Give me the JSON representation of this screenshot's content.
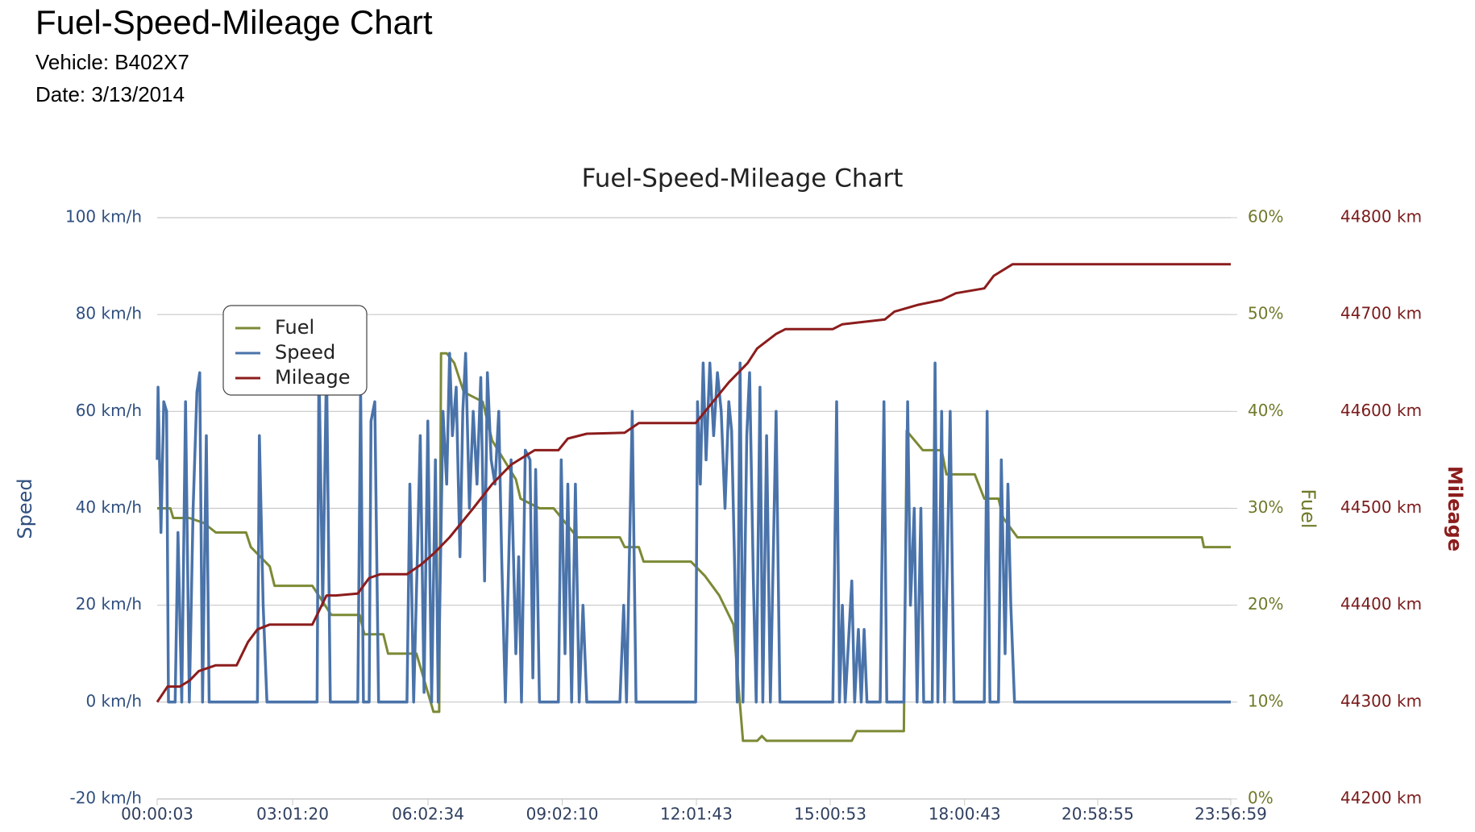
{
  "header": {
    "title": "Fuel-Speed-Mileage Chart",
    "vehicle": "Vehicle: B402X7",
    "date": "Date: 3/13/2014"
  },
  "chart_data": {
    "type": "line",
    "title": "Fuel-Speed-Mileage Chart",
    "y_label": "Speed",
    "y2_label": "Fuel",
    "y3_label": "Mileage",
    "legend": "upper left",
    "grid": true,
    "xlim": [
      3,
      86219
    ],
    "xticks": [
      {
        "value": 3,
        "label": "00:00:03"
      },
      {
        "value": 10880,
        "label": "03:01:20"
      },
      {
        "value": 21754,
        "label": "06:02:34"
      },
      {
        "value": 32530,
        "label": "09:02:10"
      },
      {
        "value": 43303,
        "label": "12:01:43"
      },
      {
        "value": 54053,
        "label": "15:00:53"
      },
      {
        "value": 64843,
        "label": "18:00:43"
      },
      {
        "value": 75535,
        "label": "20:58:55"
      },
      {
        "value": 86219,
        "label": "23:56:59"
      }
    ],
    "ylim": [
      -20,
      100
    ],
    "yticks": [
      {
        "value": -20,
        "label": "-20 km/h"
      },
      {
        "value": 0,
        "label": "0 km/h"
      },
      {
        "value": 20,
        "label": "20 km/h"
      },
      {
        "value": 40,
        "label": "40 km/h"
      },
      {
        "value": 60,
        "label": "60 km/h"
      },
      {
        "value": 80,
        "label": "80 km/h"
      },
      {
        "value": 100,
        "label": "100 km/h"
      }
    ],
    "y2lim": [
      0,
      60
    ],
    "y2ticks": [
      {
        "value": 0,
        "label": "0%"
      },
      {
        "value": 10,
        "label": "10%"
      },
      {
        "value": 20,
        "label": "20%"
      },
      {
        "value": 30,
        "label": "30%"
      },
      {
        "value": 40,
        "label": "40%"
      },
      {
        "value": 50,
        "label": "50%"
      },
      {
        "value": 60,
        "label": "60%"
      }
    ],
    "y3lim": [
      44200,
      44800
    ],
    "y3ticks": [
      {
        "value": 44200,
        "label": "44200 km"
      },
      {
        "value": 44300,
        "label": "44300 km"
      },
      {
        "value": 44400,
        "label": "44400 km"
      },
      {
        "value": 44500,
        "label": "44500 km"
      },
      {
        "value": 44600,
        "label": "44600 km"
      },
      {
        "value": 44700,
        "label": "44700 km"
      },
      {
        "value": 44800,
        "label": "44800 km"
      }
    ],
    "series": [
      {
        "name": "Fuel",
        "color": "#7b8a35",
        "axis": "y2",
        "x": [
          3,
          1064,
          1292,
          2584,
          3724,
          4712,
          7144,
          7524,
          9044,
          9424,
          12464,
          13984,
          16264,
          16644,
          18164,
          18544,
          20824,
          21964,
          22192,
          22648,
          22800,
          23256,
          23864,
          24624,
          26144,
          26904,
          28804,
          29184,
          30704,
          31844,
          33744,
          37164,
          37544,
          38684,
          39064,
          42864,
          44004,
          45144,
          46284,
          47044,
          48184,
          48564,
          48944,
          55784,
          56164,
          59964,
          60192,
          61484,
          63004,
          63384,
          65664,
          66424,
          67564,
          67944,
          69084,
          83904,
          84056,
          86219
        ],
        "values": [
          30,
          30,
          29,
          29,
          28.5,
          27.5,
          27.5,
          26,
          24,
          22,
          22,
          19,
          19,
          17,
          17,
          15,
          15,
          10,
          9,
          9,
          46,
          46,
          45,
          42,
          41,
          37,
          33,
          31,
          30,
          30,
          27,
          27,
          26,
          26,
          24.5,
          24.5,
          23,
          21,
          18,
          6,
          6,
          6.5,
          6,
          6,
          7,
          7,
          38,
          36,
          36,
          33.5,
          33.5,
          31,
          31,
          29,
          27,
          27,
          26,
          26
        ]
      },
      {
        "name": "Speed",
        "color": "#4a73aa",
        "axis": "y",
        "x": [
          3,
          76,
          304,
          532,
          760,
          912,
          1444,
          1672,
          1976,
          2280,
          2584,
          2888,
          3192,
          3420,
          3648,
          3952,
          4180,
          4712,
          8056,
          8208,
          8512,
          8816,
          12844,
          12996,
          13300,
          13604,
          13908,
          16112,
          16340,
          16568,
          17024,
          17176,
          17480,
          17784,
          20064,
          20292,
          20596,
          20900,
          21128,
          21432,
          21736,
          22040,
          22344,
          22572,
          22952,
          23256,
          23484,
          23712,
          24016,
          24320,
          24548,
          24776,
          25080,
          25384,
          25688,
          25992,
          26296,
          26524,
          26828,
          27132,
          27436,
          27664,
          27968,
          28424,
          28804,
          29032,
          29260,
          29564,
          29944,
          30172,
          30400,
          30704,
          32224,
          32452,
          32756,
          32984,
          33288,
          33592,
          33896,
          34200,
          34504,
          37164,
          37468,
          37696,
          38152,
          38456,
          43244,
          43396,
          43624,
          43852,
          44080,
          44384,
          44688,
          44992,
          45296,
          45600,
          45904,
          46132,
          46360,
          46588,
          46816,
          47044,
          47348,
          47576,
          47880,
          48108,
          48412,
          48640,
          48944,
          49248,
          49704,
          50008,
          54264,
          54568,
          54796,
          55024,
          55252,
          55784,
          56012,
          56316,
          56544,
          56772,
          57000,
          58064,
          58368,
          58596,
          59964,
          60268,
          60496,
          60800,
          61028,
          61332,
          61560,
          62244,
          62472,
          62700,
          63004,
          63232,
          63688,
          63992,
          66424,
          66652,
          66880,
          67564,
          67792,
          68096,
          68324,
          68552,
          68856,
          86219
        ],
        "values": [
          50,
          65,
          35,
          62,
          60,
          0,
          0,
          35,
          0,
          62,
          0,
          40,
          64,
          68,
          0,
          55,
          0,
          0,
          0,
          55,
          20,
          0,
          0,
          70,
          20,
          70,
          0,
          0,
          65,
          0,
          0,
          58,
          62,
          0,
          0,
          45,
          0,
          30,
          55,
          2,
          58,
          0,
          50,
          0,
          60,
          45,
          72,
          55,
          65,
          30,
          60,
          72,
          40,
          60,
          45,
          67,
          25,
          68,
          50,
          45,
          60,
          30,
          0,
          50,
          10,
          30,
          0,
          52,
          50,
          5,
          48,
          0,
          0,
          50,
          10,
          45,
          0,
          45,
          0,
          20,
          0,
          0,
          20,
          0,
          60,
          0,
          0,
          62,
          45,
          70,
          50,
          70,
          55,
          68,
          60,
          40,
          62,
          56,
          30,
          0,
          70,
          0,
          55,
          68,
          25,
          0,
          65,
          0,
          55,
          0,
          60,
          0,
          0,
          62,
          0,
          20,
          0,
          25,
          0,
          15,
          0,
          15,
          0,
          0,
          62,
          0,
          0,
          62,
          20,
          40,
          0,
          40,
          0,
          0,
          70,
          0,
          60,
          0,
          60,
          0,
          0,
          60,
          0,
          0,
          50,
          10,
          45,
          20,
          0,
          0
        ]
      },
      {
        "name": "Mileage",
        "color": "#8c1c1c",
        "axis": "y3",
        "x": [
          3,
          836,
          1824,
          2584,
          3344,
          4712,
          6384,
          7296,
          8056,
          9044,
          12464,
          13604,
          14364,
          16112,
          17024,
          17936,
          20064,
          21204,
          22344,
          23484,
          25384,
          26904,
          28424,
          30324,
          32224,
          32984,
          34504,
          37544,
          38684,
          43244,
          44004,
          45904,
          47424,
          48184,
          49704,
          50464,
          54264,
          55024,
          58444,
          59204,
          61104,
          63004,
          64144,
          66424,
          67184,
          68704,
          86219
        ],
        "values": [
          44300,
          44316,
          44316,
          44322,
          44332,
          44338,
          44338,
          44362,
          44375,
          44380,
          44380,
          44410,
          44410,
          44412,
          44428,
          44432,
          44432,
          44442,
          44455,
          44470,
          44500,
          44525,
          44545,
          44560,
          44560,
          44572,
          44577,
          44578,
          44588,
          44588,
          44600,
          44630,
          44650,
          44665,
          44680,
          44685,
          44685,
          44690,
          44695,
          44703,
          44710,
          44715,
          44722,
          44727,
          44740,
          44752,
          44752
        ]
      }
    ]
  }
}
